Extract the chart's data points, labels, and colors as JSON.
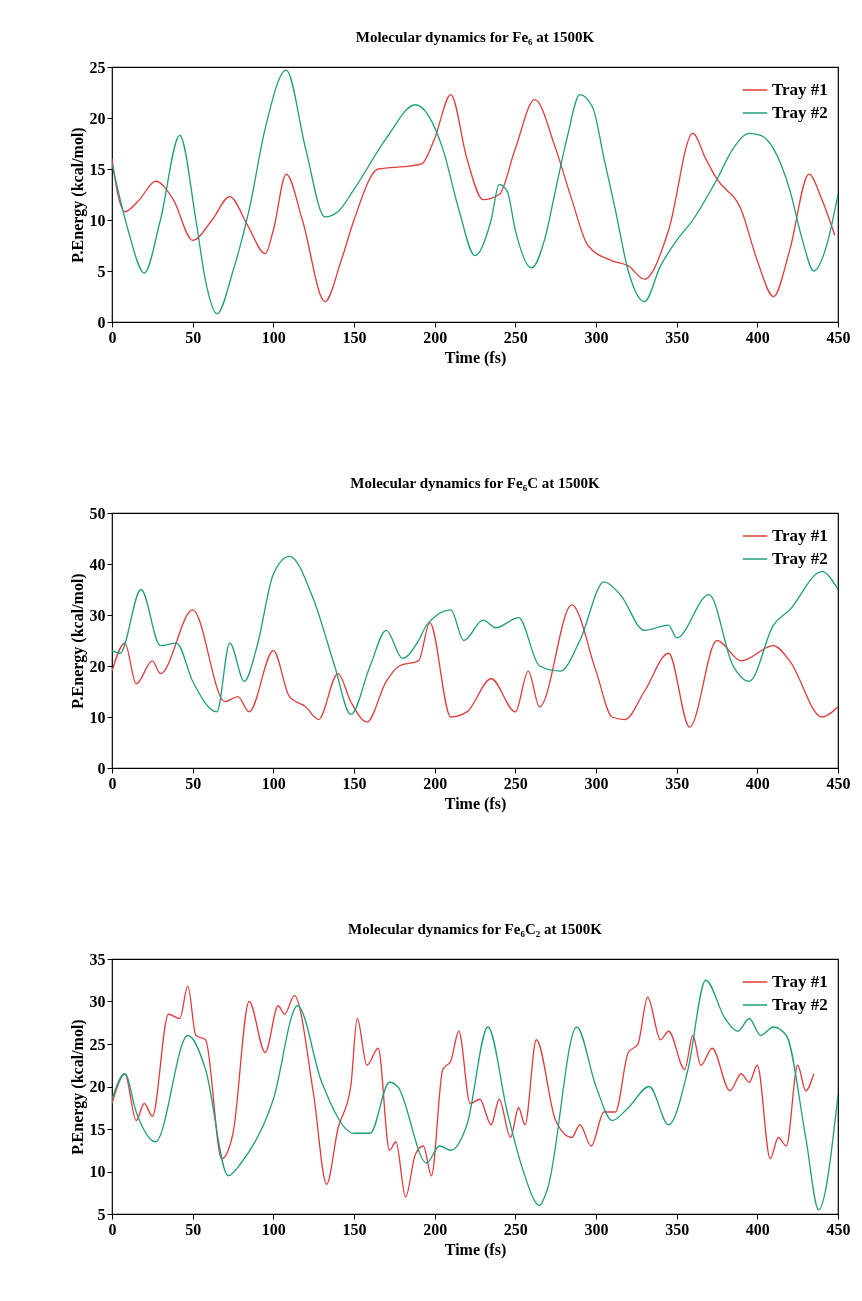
{
  "chart_data": [
    {
      "type": "line",
      "title": "Molecular dynamics for Fe₆ at 1500K",
      "xlabel": "Time (fs)",
      "ylabel": "P.Energy (kcal/mol)",
      "xlim": [
        0,
        450
      ],
      "ylim": [
        0,
        25
      ],
      "xticks": [
        0,
        50,
        100,
        150,
        200,
        250,
        300,
        350,
        400,
        450
      ],
      "yticks": [
        0,
        5,
        10,
        15,
        20,
        25
      ],
      "grid": false,
      "legend": "top right",
      "series": [
        {
          "name": "Tray #1",
          "color": "#e03c3c",
          "x": [
            0,
            3,
            8,
            17,
            27,
            38,
            50,
            62,
            73,
            84,
            95,
            100,
            108,
            118,
            132,
            142,
            150,
            165,
            185,
            192,
            200,
            210,
            220,
            230,
            240,
            250,
            262,
            275,
            285,
            295,
            310,
            320,
            330,
            345,
            360,
            368,
            375,
            390,
            400,
            410,
            420,
            432,
            440,
            448
          ],
          "values": [
            16,
            13,
            10.8,
            12,
            13.8,
            12,
            8,
            10,
            12.3,
            9.5,
            6.7,
            9,
            14.5,
            10,
            2,
            6,
            10,
            15,
            15.3,
            15.5,
            18,
            22.3,
            16,
            12,
            12.5,
            17,
            21.8,
            17,
            12,
            7.5,
            6,
            5.5,
            4.2,
            9,
            18.5,
            16,
            14,
            11,
            6,
            2.5,
            7,
            14.5,
            12,
            8.5
          ]
        },
        {
          "name": "Tray #2",
          "color": "#1f9e7a",
          "x": [
            0,
            10,
            20,
            30,
            42,
            52,
            58,
            65,
            75,
            85,
            95,
            108,
            120,
            132,
            140,
            150,
            170,
            188,
            205,
            215,
            225,
            235,
            240,
            245,
            250,
            260,
            268,
            275,
            282,
            290,
            298,
            305,
            312,
            320,
            330,
            340,
            350,
            360,
            375,
            385,
            395,
            402,
            410,
            420,
            428,
            435,
            442,
            450
          ],
          "values": [
            15.5,
            9,
            4.8,
            10,
            18.3,
            10,
            4,
            0.8,
            5,
            11,
            19,
            24.7,
            17,
            10.3,
            10.8,
            13,
            18,
            21.3,
            17,
            11,
            6.5,
            10,
            13.5,
            12.8,
            9,
            5.3,
            8,
            13,
            18,
            22.3,
            21,
            16,
            11,
            5,
            2,
            5.5,
            8,
            10,
            14,
            17,
            18.5,
            18.3,
            17,
            13,
            8,
            5,
            7,
            12.5
          ]
        }
      ]
    },
    {
      "type": "line",
      "title": "Molecular dynamics for Fe₆C at 1500K",
      "xlabel": "Time (fs)",
      "ylabel": "P.Energy (kcal/mol)",
      "xlim": [
        0,
        450
      ],
      "ylim": [
        0,
        50
      ],
      "xticks": [
        0,
        50,
        100,
        150,
        200,
        250,
        300,
        350,
        400,
        450
      ],
      "yticks": [
        0,
        10,
        20,
        30,
        40,
        50
      ],
      "grid": false,
      "legend": "top right",
      "series": [
        {
          "name": "Tray #1",
          "color": "#e03c3c",
          "x": [
            0,
            8,
            15,
            25,
            30,
            50,
            70,
            78,
            85,
            100,
            110,
            120,
            128,
            140,
            148,
            158,
            170,
            178,
            190,
            197,
            210,
            220,
            235,
            250,
            258,
            265,
            285,
            300,
            310,
            318,
            330,
            345,
            358,
            375,
            390,
            410,
            420,
            440,
            450
          ],
          "values": [
            19,
            24.5,
            16.5,
            21,
            18.5,
            31,
            13,
            14,
            11,
            23,
            14,
            12,
            9.5,
            18.5,
            13,
            9,
            17,
            20,
            21,
            28.5,
            10,
            11,
            17.5,
            11,
            19,
            12,
            32,
            19,
            10,
            9.5,
            15,
            22.5,
            8,
            25,
            21,
            24,
            21,
            10,
            12
          ]
        },
        {
          "name": "Tray #2",
          "color": "#1f9e7a",
          "x": [
            0,
            5,
            18,
            30,
            40,
            50,
            65,
            73,
            82,
            90,
            100,
            110,
            125,
            138,
            148,
            160,
            170,
            180,
            190,
            195,
            210,
            218,
            230,
            238,
            252,
            265,
            278,
            290,
            305,
            315,
            330,
            345,
            350,
            370,
            385,
            395,
            410,
            420,
            440,
            450
          ],
          "values": [
            23,
            22.5,
            35,
            24,
            24.5,
            17,
            11,
            24.5,
            17,
            24,
            38,
            41.5,
            33,
            20,
            10.5,
            20,
            27,
            21.5,
            25,
            28,
            31,
            25,
            29,
            27.5,
            29.5,
            20,
            19,
            25,
            36.5,
            34,
            27,
            28,
            25.5,
            34,
            20,
            17,
            28,
            31,
            38.5,
            35
          ]
        }
      ]
    },
    {
      "type": "line",
      "title": "Molecular dynamics for Fe₆C₂ at 1500K",
      "xlabel": "Time (fs)",
      "ylabel": "P.Energy (kcal/mol)",
      "xlim": [
        0,
        450
      ],
      "ylim": [
        5,
        35
      ],
      "xticks": [
        0,
        50,
        100,
        150,
        200,
        250,
        300,
        350,
        400,
        450
      ],
      "yticks": [
        5,
        10,
        15,
        20,
        25,
        30,
        35
      ],
      "grid": false,
      "legend": "top right",
      "series": [
        {
          "name": "Tray #1",
          "color": "#e03c3c",
          "x": [
            0,
            8,
            15,
            20,
            25,
            35,
            42,
            47,
            52,
            58,
            68,
            75,
            85,
            95,
            103,
            107,
            113,
            125,
            133,
            140,
            148,
            152,
            158,
            165,
            172,
            176,
            182,
            188,
            193,
            198,
            205,
            210,
            215,
            222,
            228,
            235,
            240,
            247,
            252,
            256,
            263,
            275,
            285,
            290,
            297,
            305,
            312,
            320,
            326,
            332,
            340,
            345,
            355,
            360,
            365,
            372,
            383,
            390,
            395,
            400,
            408,
            413,
            418,
            425,
            430,
            435
          ],
          "values": [
            18,
            21.5,
            16,
            18,
            16.5,
            28.5,
            28,
            31.8,
            26,
            25.5,
            11.5,
            14.5,
            30,
            24,
            29.5,
            28.5,
            30.7,
            19,
            8.5,
            15,
            20,
            28,
            22.5,
            24.5,
            12.5,
            13.5,
            7,
            12,
            13,
            9.5,
            22,
            23,
            26.5,
            18,
            18.5,
            15.5,
            18.5,
            14,
            17.5,
            15.5,
            25.5,
            16,
            14,
            15.5,
            13,
            17,
            17,
            24,
            25,
            30.5,
            25.5,
            26.5,
            22,
            26,
            22.5,
            24.5,
            19.5,
            21.5,
            20.5,
            22.5,
            11.5,
            14,
            13,
            22.5,
            19.5,
            21.5
          ]
        },
        {
          "name": "Tray #2",
          "color": "#1f9e7a",
          "x": [
            0,
            8,
            15,
            27,
            47,
            58,
            72,
            80,
            100,
            115,
            130,
            150,
            160,
            172,
            177,
            195,
            203,
            210,
            220,
            233,
            245,
            255,
            265,
            270,
            288,
            300,
            310,
            320,
            333,
            345,
            357,
            368,
            380,
            388,
            395,
            402,
            410,
            418,
            430,
            438,
            450
          ],
          "values": [
            18.5,
            21.5,
            17,
            13.5,
            26,
            22,
            9.5,
            11,
            18.5,
            29.5,
            20.5,
            14.5,
            14.5,
            20.5,
            20,
            11,
            13,
            12.5,
            15.5,
            27,
            17,
            10,
            6,
            8,
            27,
            20,
            16,
            17.5,
            20,
            15.5,
            22,
            32.5,
            28,
            26.5,
            28,
            26,
            27,
            26,
            14,
            5.5,
            19
          ]
        }
      ]
    }
  ]
}
